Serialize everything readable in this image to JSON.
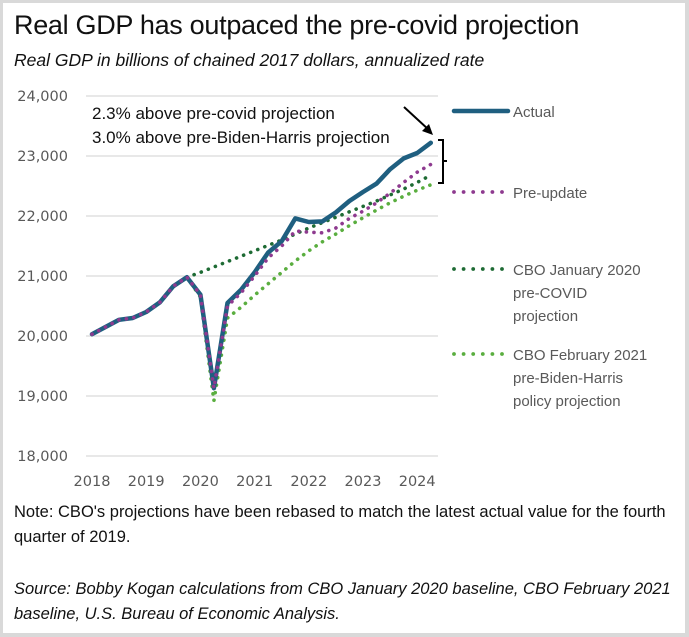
{
  "title": "Real GDP has outpaced the pre-covid projection",
  "subtitle": "Real GDP in billions of chained 2017 dollars, annualized rate",
  "note": "Note: CBO's projections have been rebased to match the latest actual value for the fourth quarter of 2019.",
  "source": "Source: Bobby Kogan calculations from CBO January 2020 baseline, CBO February 2021 baseline, U.S. Bureau of Economic Analysis.",
  "chart_data": {
    "type": "line",
    "title": "Real GDP has outpaced the pre-covid projection",
    "subtitle": "Real GDP in billions of chained 2017 dollars, annualized rate",
    "xlabel": "",
    "ylabel": "",
    "ylim": [
      18000,
      24000
    ],
    "yticks": [
      18000,
      19000,
      20000,
      21000,
      22000,
      23000,
      24000
    ],
    "ytick_labels": [
      "18,000",
      "19,000",
      "20,000",
      "21,000",
      "22,000",
      "23,000",
      "24,000"
    ],
    "xlim": [
      2018.0,
      2024.25
    ],
    "xticks": [
      2018,
      2019,
      2020,
      2021,
      2022,
      2023,
      2024
    ],
    "xtick_labels": [
      "2018",
      "2019",
      "2020",
      "2021",
      "2022",
      "2023",
      "2024"
    ],
    "grid": "horizontal",
    "legend_position": "right",
    "annotations": [
      "2.3% above pre-covid projection",
      "3.0% above pre-Biden-Harris projection"
    ],
    "series": [
      {
        "name": "Actual",
        "style": "solid",
        "color": "#1f5f80",
        "x": [
          2018.0,
          2018.25,
          2018.5,
          2018.75,
          2019.0,
          2019.25,
          2019.5,
          2019.75,
          2020.0,
          2020.25,
          2020.5,
          2020.75,
          2021.0,
          2021.25,
          2021.5,
          2021.75,
          2022.0,
          2022.25,
          2022.5,
          2022.75,
          2023.0,
          2023.25,
          2023.5,
          2023.75,
          2024.0,
          2024.25
        ],
        "values": [
          20030,
          20150,
          20270,
          20300,
          20400,
          20560,
          20830,
          20980,
          20690,
          19130,
          20550,
          20770,
          21060,
          21390,
          21580,
          21960,
          21900,
          21910,
          22060,
          22250,
          22400,
          22540,
          22780,
          22960,
          23050,
          23220
        ]
      },
      {
        "name": "Pre-update",
        "style": "dotted",
        "color": "#8e3a8f",
        "x": [
          2018.0,
          2018.25,
          2018.5,
          2018.75,
          2019.0,
          2019.25,
          2019.5,
          2019.75,
          2020.0,
          2020.25,
          2020.5,
          2020.75,
          2021.0,
          2021.25,
          2021.5,
          2021.75,
          2022.0,
          2022.25,
          2022.5,
          2022.75,
          2023.0,
          2023.25,
          2023.5,
          2023.75,
          2024.0,
          2024.25
        ],
        "values": [
          20030,
          20150,
          20270,
          20300,
          20400,
          20560,
          20830,
          20980,
          20690,
          19130,
          20500,
          20720,
          21000,
          21300,
          21500,
          21750,
          21730,
          21720,
          21800,
          21960,
          22080,
          22220,
          22380,
          22560,
          22730,
          22860
        ]
      },
      {
        "name": "CBO January 2020 pre-COVID projection",
        "style": "dotted",
        "color": "#1e6b34",
        "x": [
          2019.75,
          2020.0,
          2020.25,
          2020.5,
          2020.75,
          2021.0,
          2021.25,
          2021.5,
          2021.75,
          2022.0,
          2022.25,
          2022.5,
          2022.75,
          2023.0,
          2023.25,
          2023.5,
          2023.75,
          2024.0,
          2024.25
        ],
        "values": [
          20980,
          21060,
          21150,
          21240,
          21330,
          21420,
          21510,
          21600,
          21700,
          21800,
          21890,
          21980,
          22070,
          22160,
          22250,
          22350,
          22450,
          22560,
          22680
        ]
      },
      {
        "name": "CBO February 2021 pre-Biden-Harris policy projection",
        "style": "dotted",
        "color": "#5aae3f",
        "x": [
          2019.75,
          2020.0,
          2020.25,
          2020.5,
          2020.75,
          2021.0,
          2021.25,
          2021.5,
          2021.75,
          2022.0,
          2022.25,
          2022.5,
          2022.75,
          2023.0,
          2023.25,
          2023.5,
          2023.75,
          2024.0,
          2024.25
        ],
        "values": [
          20980,
          20650,
          18920,
          20300,
          20480,
          20680,
          20870,
          21060,
          21250,
          21420,
          21570,
          21700,
          21840,
          21970,
          22100,
          22220,
          22330,
          22430,
          22520
        ]
      }
    ],
    "legend": [
      {
        "label_lines": [
          "Actual"
        ]
      },
      {
        "label_lines": [
          "Pre-update"
        ]
      },
      {
        "label_lines": [
          "CBO January 2020",
          "pre-COVID",
          "projection"
        ]
      },
      {
        "label_lines": [
          "CBO February 2021",
          "pre-Biden-Harris",
          "policy projection"
        ]
      }
    ]
  }
}
